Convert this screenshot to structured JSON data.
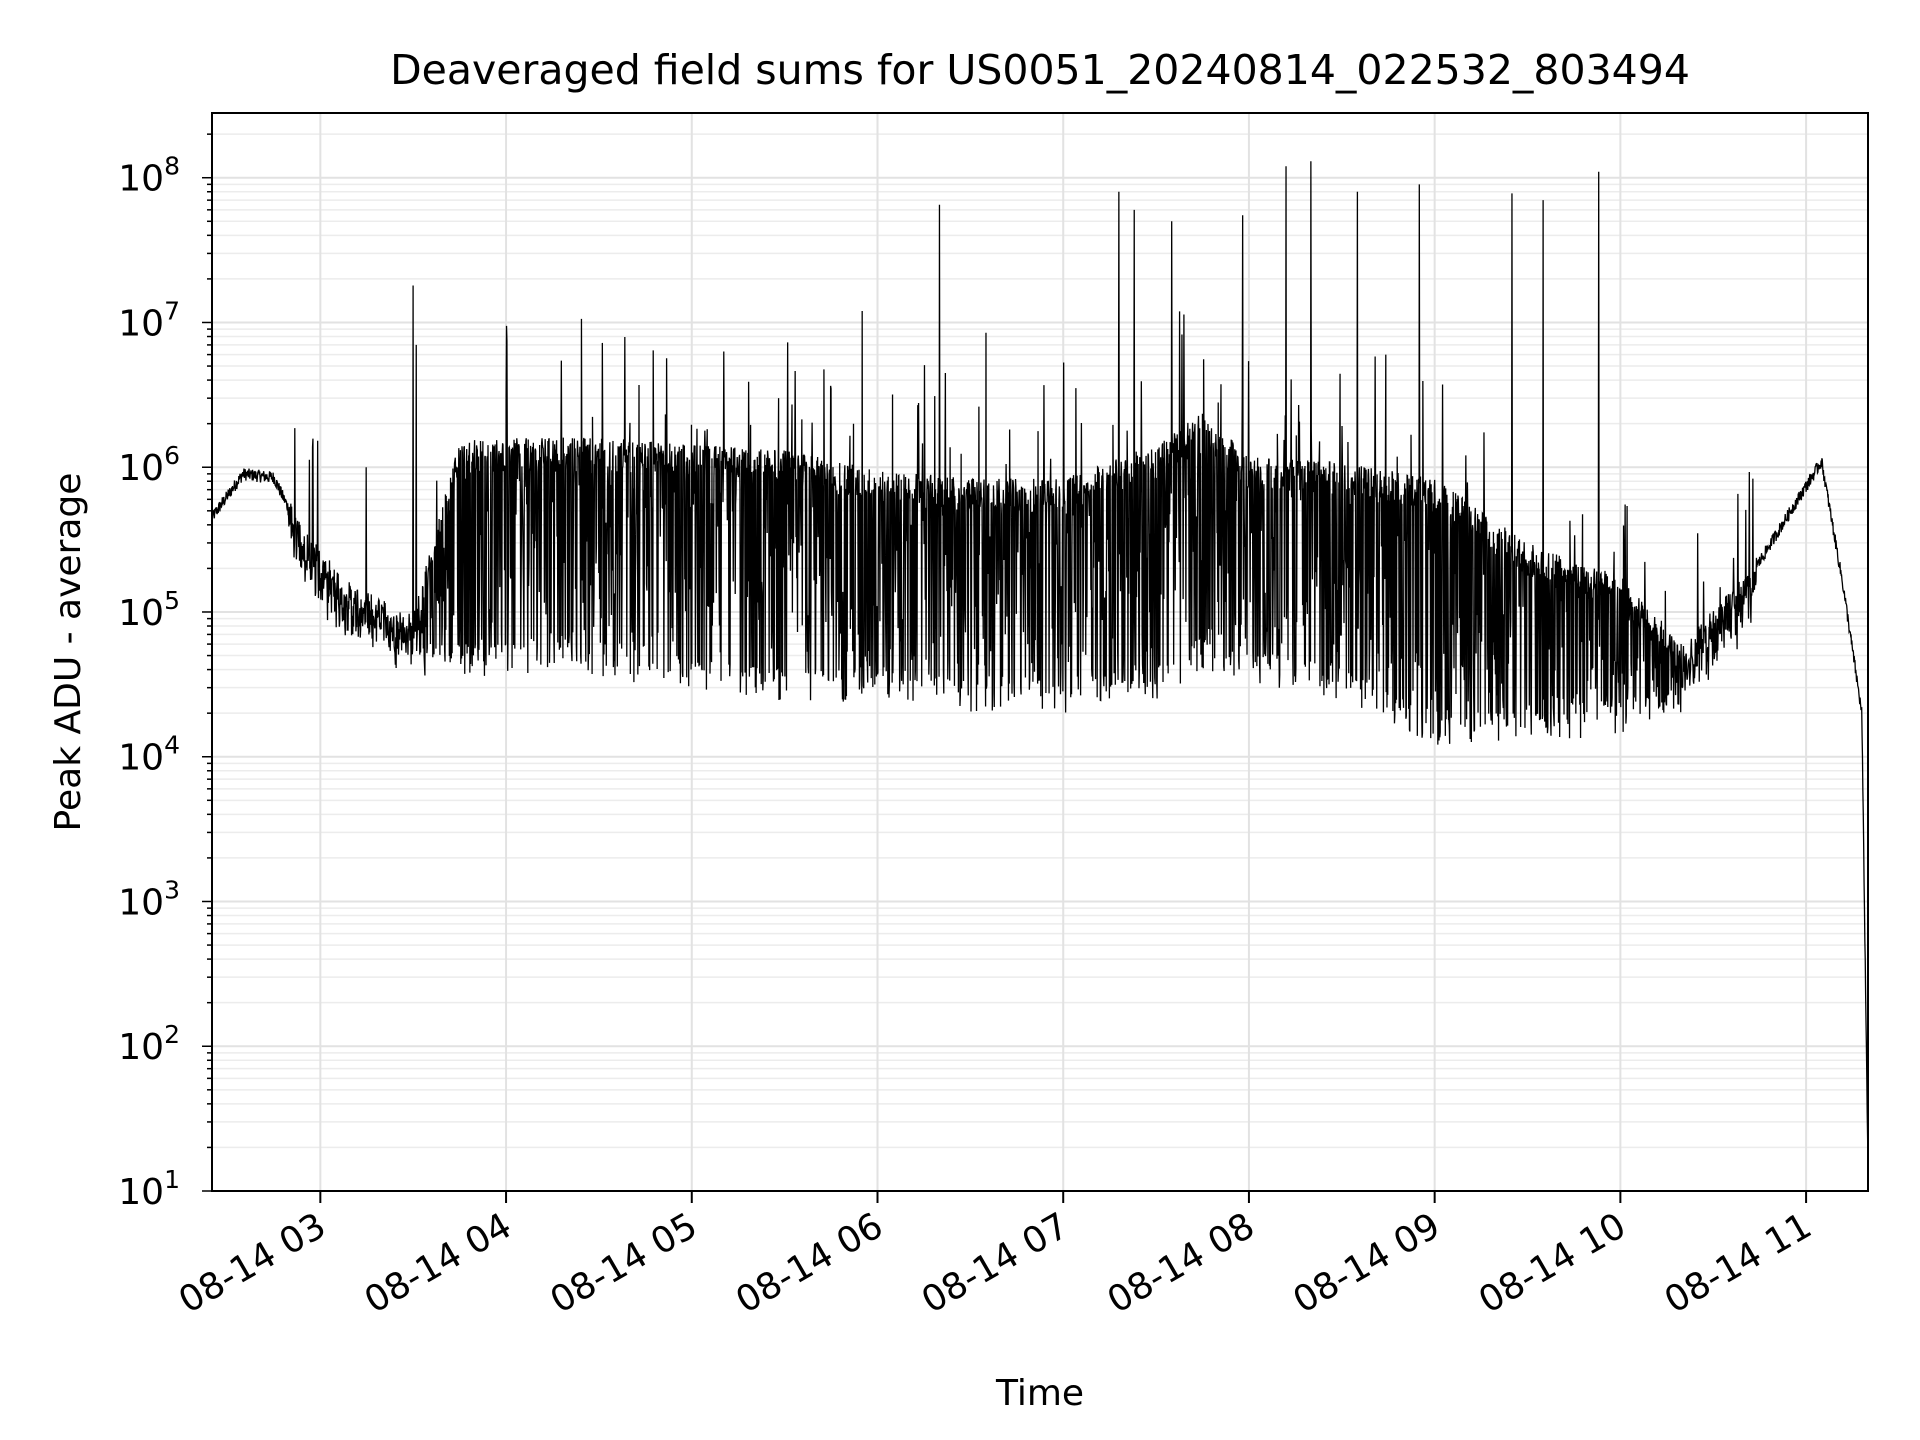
{
  "chart_data": {
    "type": "line",
    "title": "Deaveraged field sums for US0051_20240814_022532_803494",
    "xlabel": "Time",
    "ylabel": "Peak ADU - average",
    "yscale": "log",
    "ylim": [
      10,
      280000000
    ],
    "xlim": [
      "2024-08-14 02:25",
      "2024-08-14 11:20"
    ],
    "grid": "on (major and minor)",
    "x_ticks": [
      "08-14 03",
      "08-14 04",
      "08-14 05",
      "08-14 06",
      "08-14 07",
      "08-14 08",
      "08-14 09",
      "08-14 10",
      "08-14 11"
    ],
    "x_tick_times": [
      "2024-08-14 03:00",
      "2024-08-14 04:00",
      "2024-08-14 05:00",
      "2024-08-14 06:00",
      "2024-08-14 07:00",
      "2024-08-14 08:00",
      "2024-08-14 09:00",
      "2024-08-14 10:00",
      "2024-08-14 11:00"
    ],
    "y_ticks": [
      {
        "value": 10,
        "base": "10",
        "exp": "1"
      },
      {
        "value": 100,
        "base": "10",
        "exp": "2"
      },
      {
        "value": 1000,
        "base": "10",
        "exp": "3"
      },
      {
        "value": 10000,
        "base": "10",
        "exp": "4"
      },
      {
        "value": 100000,
        "base": "10",
        "exp": "5"
      },
      {
        "value": 1000000,
        "base": "10",
        "exp": "6"
      },
      {
        "value": 10000000,
        "base": "10",
        "exp": "7"
      },
      {
        "value": 100000000,
        "base": "10",
        "exp": "8"
      }
    ],
    "series": [
      {
        "color": "#000000",
        "envelope": [
          {
            "t": "2024-08-14 02:25",
            "base": 450000,
            "trough": 400000
          },
          {
            "t": "2024-08-14 02:35",
            "base": 900000,
            "trough": 700000
          },
          {
            "t": "2024-08-14 02:45",
            "base": 850000,
            "trough": 600000
          },
          {
            "t": "2024-08-14 02:55",
            "base": 300000,
            "trough": 150000
          },
          {
            "t": "2024-08-14 03:10",
            "base": 130000,
            "trough": 70000
          },
          {
            "t": "2024-08-14 03:30",
            "base": 80000,
            "trough": 45000
          },
          {
            "t": "2024-08-14 03:45",
            "base": 1300000,
            "trough": 45000
          },
          {
            "t": "2024-08-14 04:30",
            "base": 1350000,
            "trough": 45000
          },
          {
            "t": "2024-08-14 05:00",
            "base": 1200000,
            "trough": 35000
          },
          {
            "t": "2024-08-14 05:30",
            "base": 1100000,
            "trough": 30000
          },
          {
            "t": "2024-08-14 06:00",
            "base": 800000,
            "trough": 30000
          },
          {
            "t": "2024-08-14 06:30",
            "base": 700000,
            "trough": 25000
          },
          {
            "t": "2024-08-14 07:00",
            "base": 700000,
            "trough": 25000
          },
          {
            "t": "2024-08-14 07:30",
            "base": 1200000,
            "trough": 30000
          },
          {
            "t": "2024-08-14 07:45",
            "base": 2000000,
            "trough": 50000
          },
          {
            "t": "2024-08-14 08:00",
            "base": 1000000,
            "trough": 40000
          },
          {
            "t": "2024-08-14 08:30",
            "base": 900000,
            "trough": 30000
          },
          {
            "t": "2024-08-14 09:00",
            "base": 700000,
            "trough": 15000
          },
          {
            "t": "2024-08-14 09:30",
            "base": 250000,
            "trough": 15000
          },
          {
            "t": "2024-08-14 10:00",
            "base": 150000,
            "trough": 18000
          },
          {
            "t": "2024-08-14 10:20",
            "base": 50000,
            "trough": 22000
          },
          {
            "t": "2024-08-14 10:40",
            "base": 150000,
            "trough": 80000
          },
          {
            "t": "2024-08-14 10:55",
            "base": 500000,
            "trough": 400000
          },
          {
            "t": "2024-08-14 11:05",
            "base": 1100000,
            "trough": 1000000
          },
          {
            "t": "2024-08-14 11:12",
            "base": 150000,
            "trough": 100000
          },
          {
            "t": "2024-08-14 11:18",
            "base": 20000,
            "trough": 20000
          },
          {
            "t": "2024-08-14 11:20",
            "base": 15,
            "trough": 15
          }
        ],
        "notable_spikes": [
          {
            "t": "2024-08-14 03:30",
            "value": 18000000
          },
          {
            "t": "2024-08-14 03:31",
            "value": 7000000
          },
          {
            "t": "2024-08-14 04:43",
            "value": 3700000
          },
          {
            "t": "2024-08-14 05:28",
            "value": 3000000
          },
          {
            "t": "2024-08-14 05:55",
            "value": 12000000
          },
          {
            "t": "2024-08-14 06:20",
            "value": 65000000
          },
          {
            "t": "2024-08-14 06:35",
            "value": 8500000
          },
          {
            "t": "2024-08-14 07:18",
            "value": 80000000
          },
          {
            "t": "2024-08-14 07:23",
            "value": 60000000
          },
          {
            "t": "2024-08-14 07:35",
            "value": 50000000
          },
          {
            "t": "2024-08-14 07:58",
            "value": 55000000
          },
          {
            "t": "2024-08-14 08:12",
            "value": 120000000
          },
          {
            "t": "2024-08-14 08:20",
            "value": 130000000
          },
          {
            "t": "2024-08-14 08:35",
            "value": 80000000
          },
          {
            "t": "2024-08-14 08:55",
            "value": 90000000
          },
          {
            "t": "2024-08-14 09:25",
            "value": 78000000
          },
          {
            "t": "2024-08-14 09:35",
            "value": 70000000
          },
          {
            "t": "2024-08-14 09:53",
            "value": 110000000
          }
        ]
      }
    ]
  }
}
